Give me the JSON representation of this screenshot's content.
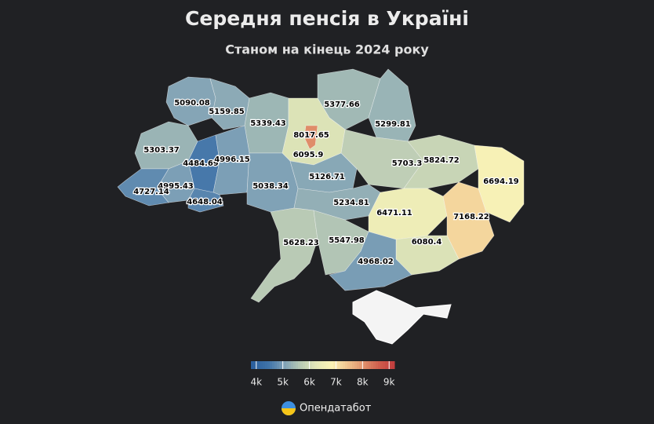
{
  "title": "Середня пенсія в Україні",
  "subtitle": "Станом на кінець 2024 року",
  "values": [
    5090.08,
    5159.85,
    5339.43,
    5377.66,
    5299.81,
    8017.65,
    6095.9,
    5303.37,
    4484.69,
    4996.15,
    5703.3,
    5824.72,
    6694.19,
    4995.43,
    4727.14,
    4648.04,
    5038.34,
    5126.71,
    5234.81,
    6471.11,
    7168.22,
    5628.23,
    5547.98,
    6080.4,
    4968.02
  ],
  "colorbar": {
    "lim": [
      3800,
      9200
    ],
    "colors": [
      "#2b5f9e",
      "#3e72a8",
      "#7c9fb6",
      "#b7c9b5",
      "#e4e8b8",
      "#fbf3b6",
      "#f0c38e",
      "#df8f6a",
      "#cf5c4c",
      "#c03a3c"
    ],
    "ticks": [
      {
        "value": 4000,
        "label": "4k"
      },
      {
        "value": 5000,
        "label": "5k"
      },
      {
        "value": 6000,
        "label": "6k"
      },
      {
        "value": 7000,
        "label": "7k"
      },
      {
        "value": 8000,
        "label": "8k"
      },
      {
        "value": 9000,
        "label": "9k"
      }
    ]
  },
  "source": "Опендатабот"
}
